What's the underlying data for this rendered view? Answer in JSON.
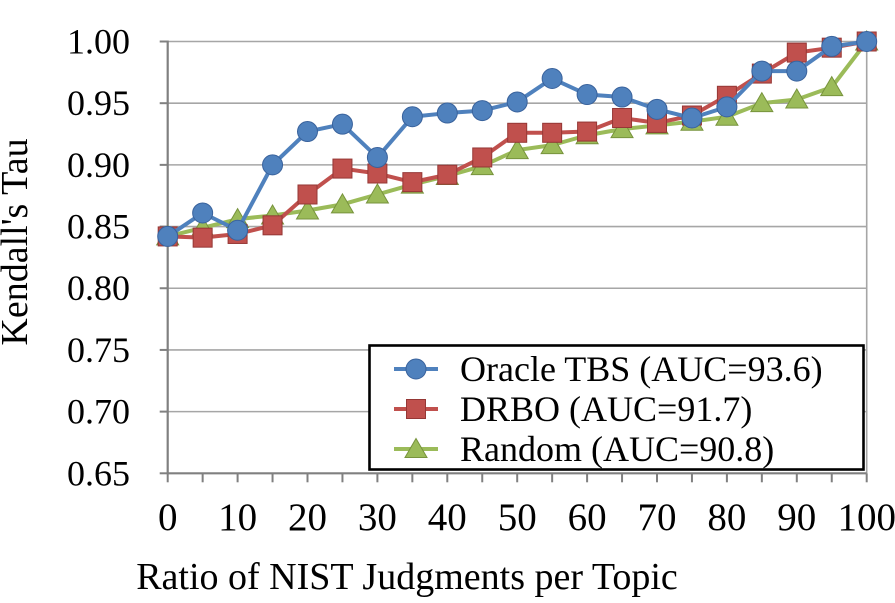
{
  "figure": {
    "title": "",
    "x_axis_title": "Ratio of NIST Judgments per Topic",
    "y_axis_title": "Kendall's Tau"
  },
  "chart_data": {
    "type": "line",
    "x": [
      0,
      5,
      10,
      15,
      20,
      25,
      30,
      35,
      40,
      45,
      50,
      55,
      60,
      65,
      70,
      75,
      80,
      85,
      90,
      95,
      100
    ],
    "series": [
      {
        "name": "Oracle TBS (AUC=93.6)",
        "marker": "circle",
        "color": "#4F81BD",
        "edge_color": "#39629C",
        "values": [
          0.842,
          0.861,
          0.847,
          0.9,
          0.927,
          0.933,
          0.906,
          0.939,
          0.942,
          0.944,
          0.951,
          0.97,
          0.957,
          0.955,
          0.945,
          0.938,
          0.947,
          0.976,
          0.976,
          0.996,
          1.0
        ]
      },
      {
        "name": "DRBO (AUC=91.7)",
        "marker": "square",
        "color": "#C0504D",
        "edge_color": "#953735",
        "values": [
          0.842,
          0.841,
          0.844,
          0.851,
          0.876,
          0.897,
          0.893,
          0.886,
          0.892,
          0.906,
          0.926,
          0.926,
          0.927,
          0.938,
          0.934,
          0.94,
          0.956,
          0.974,
          0.991,
          0.995,
          1.0
        ]
      },
      {
        "name": "Random (AUC=90.8)",
        "marker": "triangle",
        "color": "#9BBB59",
        "edge_color": "#77933C",
        "values": [
          0.842,
          0.849,
          0.856,
          0.859,
          0.863,
          0.868,
          0.876,
          0.884,
          0.891,
          0.899,
          0.912,
          0.916,
          0.924,
          0.929,
          0.932,
          0.935,
          0.939,
          0.95,
          0.953,
          0.963,
          1.0
        ]
      }
    ],
    "xlabel": "Ratio of NIST Judgments per Topic",
    "ylabel": "Kendall's Tau",
    "xlim": [
      0,
      100
    ],
    "ylim": [
      0.65,
      1.0
    ],
    "x_tick_label_step": 10,
    "x_tick_mark_step": 5,
    "y_tick_step": 0.05,
    "y_tick_labels": [
      "0.65",
      "0.70",
      "0.75",
      "0.80",
      "0.85",
      "0.90",
      "0.95",
      "1.00"
    ],
    "x_tick_labels": [
      "0",
      "10",
      "20",
      "30",
      "40",
      "50",
      "60",
      "70",
      "80",
      "90",
      "100"
    ],
    "grid": "horizontal",
    "legend_position": "inside-bottom-right",
    "legend_entries": [
      "Oracle TBS (AUC=93.6)",
      "DRBO (AUC=91.7)",
      "Random (AUC=90.8)"
    ]
  },
  "style_colors": {
    "gridline": "#A6A6A6",
    "axis": "#808080",
    "legend_border": "#000000",
    "background": "#FFFFFF"
  }
}
